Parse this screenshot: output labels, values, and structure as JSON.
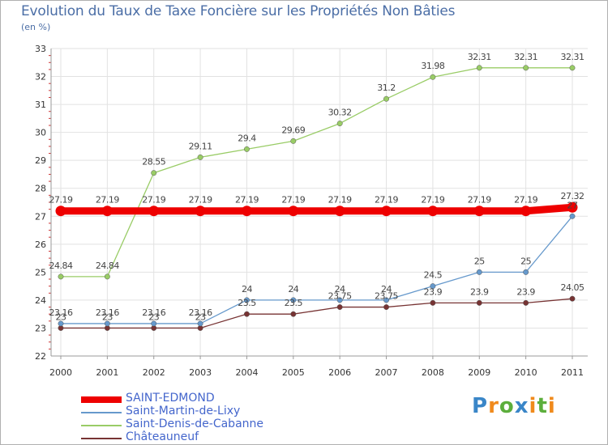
{
  "chart_data": {
    "type": "line",
    "title": "Evolution du Taux de Taxe Foncière sur les Propriétés Non Bâties",
    "unit_label": "(en %)",
    "categories": [
      "2000",
      "2001",
      "2002",
      "2003",
      "2004",
      "2005",
      "2006",
      "2007",
      "2008",
      "2009",
      "2010",
      "2011"
    ],
    "ylim": [
      22,
      33
    ],
    "yticks": [
      22,
      23,
      24,
      25,
      26,
      27,
      28,
      29,
      30,
      31,
      32,
      33
    ],
    "grid": true,
    "series": [
      {
        "name": "SAINT-EDMOND",
        "color": "#ee0000",
        "values": [
          27.19,
          27.19,
          27.19,
          27.19,
          27.19,
          27.19,
          27.19,
          27.19,
          27.19,
          27.19,
          27.19,
          27.32
        ],
        "labels": [
          "27.19",
          "27.19",
          "27.19",
          "27.19",
          "27.19",
          "27.19",
          "27.19",
          "27.19",
          "27.19",
          "27.19",
          "27.19",
          "27.32"
        ]
      },
      {
        "name": "Saint-Martin-de-Lixy",
        "color": "#6699cc",
        "values": [
          23.16,
          23.16,
          23.16,
          23.16,
          24,
          24,
          24,
          24,
          24.5,
          25,
          25,
          27
        ],
        "labels": [
          "23.16",
          "23.16",
          "23.16",
          "23.16",
          "24",
          "24",
          "24",
          "24",
          "24.5",
          "25",
          "25",
          "27"
        ]
      },
      {
        "name": "Saint-Denis-de-Cabanne",
        "color": "#99cc66",
        "values": [
          24.84,
          24.84,
          28.55,
          29.11,
          29.4,
          29.69,
          30.32,
          31.2,
          31.98,
          32.31,
          32.31,
          32.31
        ],
        "labels": [
          "24.84",
          "24.84",
          "28.55",
          "29.11",
          "29.4",
          "29.69",
          "30.32",
          "31.2",
          "31.98",
          "32.31",
          "32.31",
          "32.31"
        ]
      },
      {
        "name": "Châteauneuf",
        "color": "#773333",
        "values": [
          23,
          23,
          23,
          23,
          23.5,
          23.5,
          23.75,
          23.75,
          23.9,
          23.9,
          23.9,
          24.05
        ],
        "labels": [
          "23",
          "23",
          "23",
          "23",
          "23.5",
          "23.5",
          "23.75",
          "23.75",
          "23.9",
          "23.9",
          "23.9",
          "24.05"
        ]
      }
    ]
  },
  "logo": {
    "p": "P",
    "r": "r",
    "o": "o",
    "x": "x",
    "i": "i",
    "t": "t",
    "i2": "i"
  }
}
